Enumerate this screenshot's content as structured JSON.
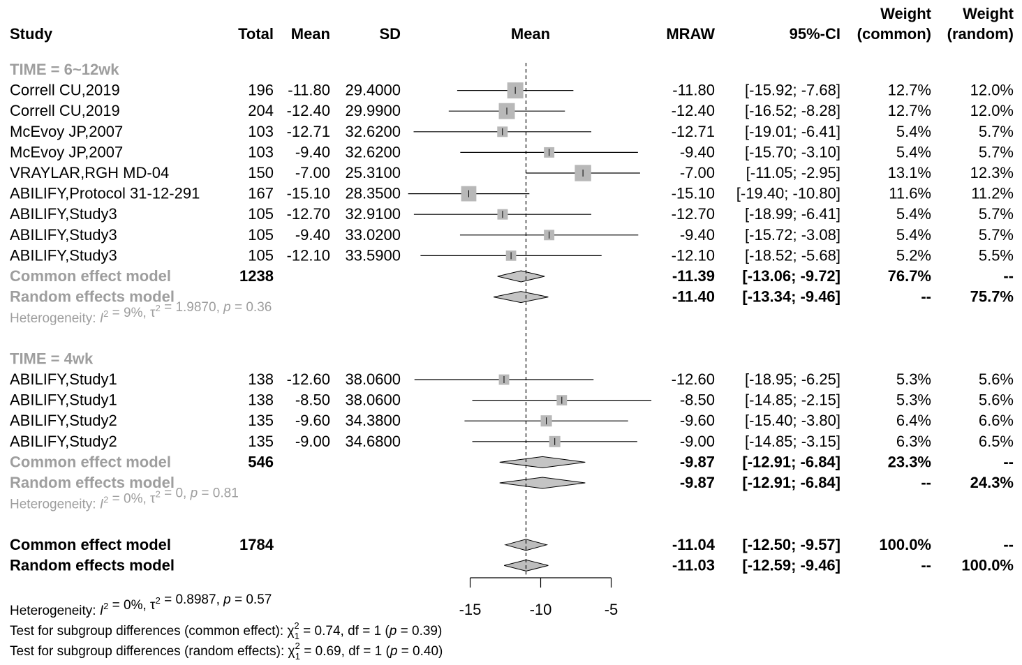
{
  "headers": {
    "study": "Study",
    "total": "Total",
    "mean": "Mean",
    "sd": "SD",
    "plot_mean": "Mean",
    "mraw": "MRAW",
    "ci": "95%-CI",
    "weight_common_1": "Weight",
    "weight_common_2": "(common)",
    "weight_random_1": "Weight",
    "weight_random_2": "(random)"
  },
  "groups": [
    {
      "label": "TIME = 6~12wk",
      "rows": [
        {
          "study": "Correll CU,2019",
          "total": "196",
          "mean": "-11.80",
          "sd": "29.4000",
          "mraw": "-11.80",
          "ci": "[-15.92;  -7.68]",
          "wc": "12.7%",
          "wr": "12.0%"
        },
        {
          "study": "Correll CU,2019",
          "total": "204",
          "mean": "-12.40",
          "sd": "29.9900",
          "mraw": "-12.40",
          "ci": "[-16.52;  -8.28]",
          "wc": "12.7%",
          "wr": "12.0%"
        },
        {
          "study": "McEvoy JP,2007",
          "total": "103",
          "mean": "-12.71",
          "sd": "32.6200",
          "mraw": "-12.71",
          "ci": "[-19.01;  -6.41]",
          "wc": "5.4%",
          "wr": "5.7%"
        },
        {
          "study": "McEvoy JP,2007",
          "total": "103",
          "mean": "-9.40",
          "sd": "32.6200",
          "mraw": "-9.40",
          "ci": "[-15.70;  -3.10]",
          "wc": "5.4%",
          "wr": "5.7%"
        },
        {
          "study": "VRAYLAR,RGH MD-04",
          "total": "150",
          "mean": "-7.00",
          "sd": "25.3100",
          "mraw": "-7.00",
          "ci": "[-11.05;  -2.95]",
          "wc": "13.1%",
          "wr": "12.3%"
        },
        {
          "study": "ABILIFY,Protocol 31-12-291",
          "total": "167",
          "mean": "-15.10",
          "sd": "28.3500",
          "mraw": "-15.10",
          "ci": "[-19.40; -10.80]",
          "wc": "11.6%",
          "wr": "11.2%"
        },
        {
          "study": "ABILIFY,Study3",
          "total": "105",
          "mean": "-12.70",
          "sd": "32.9100",
          "mraw": "-12.70",
          "ci": "[-18.99;  -6.41]",
          "wc": "5.4%",
          "wr": "5.7%"
        },
        {
          "study": "ABILIFY,Study3",
          "total": "105",
          "mean": "-9.40",
          "sd": "33.0200",
          "mraw": "-9.40",
          "ci": "[-15.72;  -3.08]",
          "wc": "5.4%",
          "wr": "5.7%"
        },
        {
          "study": "ABILIFY,Study3",
          "total": "105",
          "mean": "-12.10",
          "sd": "33.5900",
          "mraw": "-12.10",
          "ci": "[-18.52;  -5.68]",
          "wc": "5.2%",
          "wr": "5.5%"
        }
      ],
      "common": {
        "label": "Common effect model",
        "total": "1238",
        "mraw": "-11.39",
        "ci": "[-13.06;  -9.72]",
        "wc": "76.7%",
        "wr": "--"
      },
      "random": {
        "label": "Random effects model",
        "mraw": "-11.40",
        "ci": "[-13.34;  -9.46]",
        "wc": "--",
        "wr": "75.7%"
      },
      "heterogeneity": {
        "prefix": "Heterogeneity: ",
        "i2": "I",
        "i2_val": " = 9%, ",
        "tau": "τ",
        "tau_val": " = 1.9870, ",
        "p": "p",
        "p_val": " = 0.36"
      }
    },
    {
      "label": "TIME = 4wk",
      "rows": [
        {
          "study": "ABILIFY,Study1",
          "total": "138",
          "mean": "-12.60",
          "sd": "38.0600",
          "mraw": "-12.60",
          "ci": "[-18.95;  -6.25]",
          "wc": "5.3%",
          "wr": "5.6%"
        },
        {
          "study": "ABILIFY,Study1",
          "total": "138",
          "mean": "-8.50",
          "sd": "38.0600",
          "mraw": "-8.50",
          "ci": "[-14.85;  -2.15]",
          "wc": "5.3%",
          "wr": "5.6%"
        },
        {
          "study": "ABILIFY,Study2",
          "total": "135",
          "mean": "-9.60",
          "sd": "34.3800",
          "mraw": "-9.60",
          "ci": "[-15.40;  -3.80]",
          "wc": "6.4%",
          "wr": "6.6%"
        },
        {
          "study": "ABILIFY,Study2",
          "total": "135",
          "mean": "-9.00",
          "sd": "34.6800",
          "mraw": "-9.00",
          "ci": "[-14.85;  -3.15]",
          "wc": "6.3%",
          "wr": "6.5%"
        }
      ],
      "common": {
        "label": "Common effect model",
        "total": "546",
        "mraw": "-9.87",
        "ci": "[-12.91;  -6.84]",
        "wc": "23.3%",
        "wr": "--"
      },
      "random": {
        "label": "Random effects model",
        "mraw": "-9.87",
        "ci": "[-12.91;  -6.84]",
        "wc": "--",
        "wr": "24.3%"
      },
      "heterogeneity": {
        "prefix": "Heterogeneity: ",
        "i2": "I",
        "i2_val": " = 0%, ",
        "tau": "τ",
        "tau_val": " = 0, ",
        "p": "p",
        "p_val": " = 0.81"
      }
    }
  ],
  "overall": {
    "common": {
      "label": "Common effect model",
      "total": "1784",
      "mraw": "-11.04",
      "ci": "[-12.50;  -9.57]",
      "wc": "100.0%",
      "wr": "--"
    },
    "random": {
      "label": "Random effects model",
      "mraw": "-11.03",
      "ci": "[-12.59;  -9.46]",
      "wc": "--",
      "wr": "100.0%"
    },
    "heterogeneity": {
      "prefix": "Heterogeneity: ",
      "i2": "I",
      "i2_val": " = 0%, ",
      "tau": "τ",
      "tau_val": " = 0.8987, ",
      "p": "p",
      "p_val": " = 0.57"
    },
    "test_common": {
      "text": "Test for subgroup differences (common effect): ",
      "chi": "χ",
      "chi_rest": " = 0.74, df = 1 (",
      "p": "p",
      "p_val": " = 0.39)"
    },
    "test_random": {
      "text": "Test for subgroup differences (random effects): ",
      "chi": "χ",
      "chi_rest": " = 0.69, df = 1 (",
      "p": "p",
      "p_val": " = 0.40)"
    }
  },
  "chart_data": {
    "type": "forest",
    "x_ticks": [
      -15,
      -10,
      -5
    ],
    "x_tick_labels": [
      "-15",
      "-10",
      "-5"
    ],
    "reference_line": -11.04,
    "subgroups": [
      {
        "name": "TIME = 6~12wk",
        "studies": [
          {
            "est": -11.8,
            "lo": -15.92,
            "hi": -7.68,
            "weight": 12.7
          },
          {
            "est": -12.4,
            "lo": -16.52,
            "hi": -8.28,
            "weight": 12.7
          },
          {
            "est": -12.71,
            "lo": -19.01,
            "hi": -6.41,
            "weight": 5.4
          },
          {
            "est": -9.4,
            "lo": -15.7,
            "hi": -3.1,
            "weight": 5.4
          },
          {
            "est": -7.0,
            "lo": -11.05,
            "hi": -2.95,
            "weight": 13.1
          },
          {
            "est": -15.1,
            "lo": -19.4,
            "hi": -10.8,
            "weight": 11.6
          },
          {
            "est": -12.7,
            "lo": -18.99,
            "hi": -6.41,
            "weight": 5.4
          },
          {
            "est": -9.4,
            "lo": -15.72,
            "hi": -3.08,
            "weight": 5.4
          },
          {
            "est": -12.1,
            "lo": -18.52,
            "hi": -5.68,
            "weight": 5.2
          }
        ],
        "common": {
          "est": -11.39,
          "lo": -13.06,
          "hi": -9.72
        },
        "random": {
          "est": -11.4,
          "lo": -13.34,
          "hi": -9.46
        }
      },
      {
        "name": "TIME = 4wk",
        "studies": [
          {
            "est": -12.6,
            "lo": -18.95,
            "hi": -6.25,
            "weight": 5.3
          },
          {
            "est": -8.5,
            "lo": -14.85,
            "hi": -2.15,
            "weight": 5.3
          },
          {
            "est": -9.6,
            "lo": -15.4,
            "hi": -3.8,
            "weight": 6.4
          },
          {
            "est": -9.0,
            "lo": -14.85,
            "hi": -3.15,
            "weight": 6.3
          }
        ],
        "common": {
          "est": -9.87,
          "lo": -12.91,
          "hi": -6.84
        },
        "random": {
          "est": -9.87,
          "lo": -12.91,
          "hi": -6.84
        }
      }
    ],
    "overall": {
      "common": {
        "est": -11.04,
        "lo": -12.5,
        "hi": -9.57
      },
      "random": {
        "est": -11.03,
        "lo": -12.59,
        "hi": -9.46
      }
    },
    "colors": {
      "square": "#b8b8b8",
      "diamond_subgroup": "#c4c4c4",
      "diamond_overall": "#bdbdbd",
      "subgroup_text": "#9e9e9e"
    }
  }
}
